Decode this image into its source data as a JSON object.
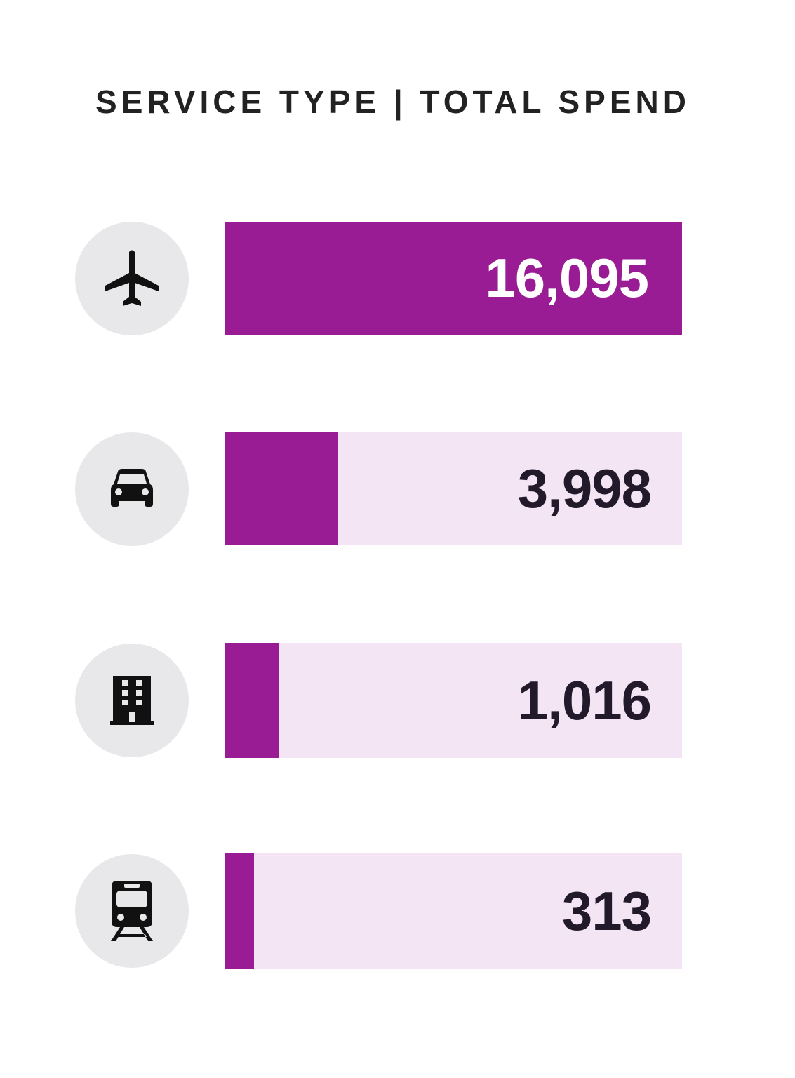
{
  "chart_data": {
    "type": "bar",
    "orientation": "horizontal",
    "title": "SERVICE TYPE | TOTAL SPEND",
    "categories": [
      "flight",
      "car",
      "hotel",
      "rail"
    ],
    "values": [
      16095,
      3998,
      1016,
      313
    ],
    "value_labels": [
      "16,095",
      "3,998",
      "1,016",
      "313"
    ],
    "xlim": [
      0,
      16095
    ],
    "grid": false,
    "legend": "none",
    "icons": [
      "airplane-icon",
      "car-icon",
      "building-icon",
      "train-icon"
    ]
  },
  "colors": {
    "bar_fill": "#991c94",
    "bar_track": "#f3e5f3",
    "icon_circle": "#e8e8ea",
    "icon": "#111111",
    "title": "#222222",
    "value_dark": "#22192a",
    "value_light": "#ffffff"
  }
}
